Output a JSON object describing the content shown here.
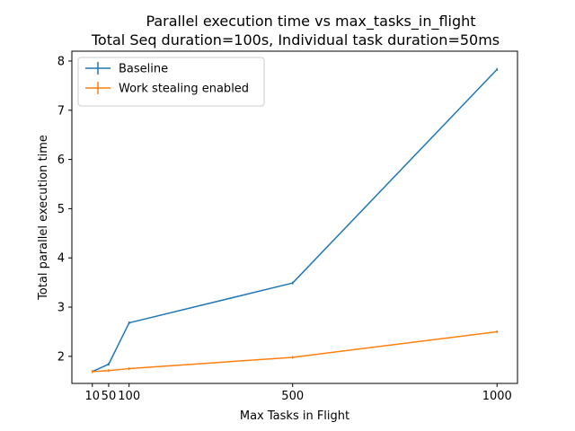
{
  "chart_data": {
    "type": "line",
    "title": "Parallel execution time vs max_tasks_in_flight",
    "subtitle": "Total Seq duration=100s, Individual task duration=50ms",
    "xlabel": "Max Tasks in Flight",
    "ylabel": "Total parallel execution time",
    "xlim": [
      -40,
      1050
    ],
    "ylim": [
      1.45,
      8.2
    ],
    "x_ticks": [
      10,
      50,
      100,
      500,
      1000
    ],
    "x_tick_labels": [
      "10",
      "50",
      "100",
      "500",
      "1000"
    ],
    "y_ticks": [
      2,
      3,
      4,
      5,
      6,
      7,
      8
    ],
    "y_tick_labels": [
      "2",
      "3",
      "4",
      "5",
      "6",
      "7",
      "8"
    ],
    "grid": false,
    "legend_position": "top-left",
    "x": [
      10,
      50,
      100,
      500,
      1000
    ],
    "series": [
      {
        "name": "Baseline",
        "color": "#1f77b4",
        "values": [
          1.69,
          1.84,
          2.68,
          3.49,
          7.83
        ]
      },
      {
        "name": "Work stealing enabled",
        "color": "#ff7f0e",
        "values": [
          1.69,
          1.71,
          1.75,
          1.98,
          2.5
        ]
      }
    ]
  }
}
